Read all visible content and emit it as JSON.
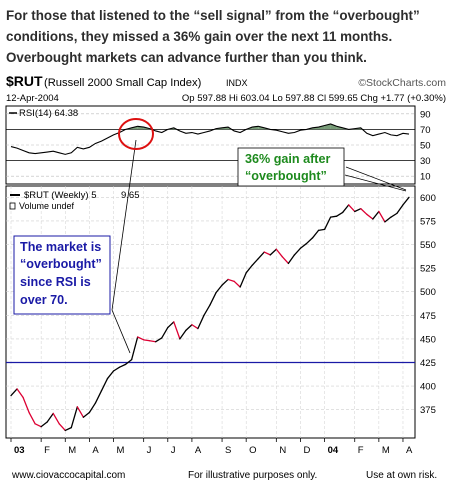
{
  "headline": [
    "For those that listened to the “sell signal” from the “overbought”",
    "conditions, they missed a 36% gain over the next 11 months.",
    "Overbought markets can advance further than you think."
  ],
  "header": {
    "symbol": "$RUT",
    "index_name": "(Russell 2000 Small Cap Index)",
    "exchange": "INDX",
    "source": "©StockCharts.com",
    "date": "12-Apr-2004",
    "quote": "Op 597.88  Hi 603.04  Lo 597.88  Cl 599.65  Chg +1.77 (+0.30%)"
  },
  "rsi_legend": "RSI(14) 64.38",
  "price_legend": "$RUT (Weekly) 5",
  "price_legend_value": "9.65",
  "volume_legend": "Volume undef",
  "annotations": {
    "gain_label": [
      "36% gain after",
      "“overbought”"
    ],
    "overbought_label": [
      "The market is",
      "“overbought”",
      "since RSI is",
      "over 70."
    ]
  },
  "colors": {
    "headline_text": "#2d2d2d",
    "price_up": "#000000",
    "price_down": "#dd0033",
    "support_line": "#1a1aa6",
    "gain_text": "#1d8a1d",
    "overbought_text": "#1a1aa6",
    "rsi_fill": "#5f8a5f",
    "circle": "#dd1111"
  },
  "chart_data": [
    {
      "type": "line",
      "name": "RSI",
      "title": "RSI(14) 64.38",
      "ylim": [
        0,
        100
      ],
      "y_ticks": [
        10,
        30,
        50,
        70,
        90
      ],
      "reference_lines": [
        70,
        30
      ],
      "x": [
        "2003-01-03",
        "2003-01-10",
        "2003-01-17",
        "2003-01-24",
        "2003-01-31",
        "2003-02-07",
        "2003-02-14",
        "2003-02-21",
        "2003-02-28",
        "2003-03-07",
        "2003-03-14",
        "2003-03-21",
        "2003-03-28",
        "2003-04-04",
        "2003-04-11",
        "2003-04-18",
        "2003-04-25",
        "2003-05-02",
        "2003-05-09",
        "2003-05-16",
        "2003-05-23",
        "2003-05-30",
        "2003-06-06",
        "2003-06-13",
        "2003-06-20",
        "2003-06-27",
        "2003-07-04",
        "2003-07-11",
        "2003-07-18",
        "2003-07-25",
        "2003-08-01",
        "2003-08-08",
        "2003-08-15",
        "2003-08-22",
        "2003-08-29",
        "2003-09-05",
        "2003-09-12",
        "2003-09-19",
        "2003-09-26",
        "2003-10-03",
        "2003-10-10",
        "2003-10-17",
        "2003-10-24",
        "2003-10-31",
        "2003-11-07",
        "2003-11-14",
        "2003-11-21",
        "2003-11-28",
        "2003-12-05",
        "2003-12-12",
        "2003-12-19",
        "2003-12-26",
        "2004-01-02",
        "2004-01-09",
        "2004-01-16",
        "2004-01-23",
        "2004-01-30",
        "2004-02-06",
        "2004-02-13",
        "2004-02-20",
        "2004-02-27",
        "2004-03-05",
        "2004-03-12",
        "2004-03-19",
        "2004-03-26",
        "2004-04-02",
        "2004-04-09"
      ],
      "values": [
        48,
        46,
        43,
        40,
        39,
        40,
        41,
        42,
        40,
        38,
        40,
        47,
        45,
        47,
        52,
        55,
        59,
        63,
        66,
        70,
        72,
        74,
        73,
        71,
        68,
        66,
        70,
        72,
        68,
        65,
        66,
        64,
        66,
        68,
        71,
        72,
        73,
        68,
        66,
        70,
        73,
        74,
        72,
        70,
        69,
        67,
        65,
        66,
        69,
        70,
        72,
        73,
        75,
        77,
        74,
        72,
        70,
        71,
        72,
        65,
        62,
        64,
        66,
        63,
        62,
        65,
        64
      ]
    },
    {
      "type": "line",
      "name": "$RUT (Weekly)",
      "title": "$RUT (Weekly)",
      "xlabel": "",
      "ylabel": "",
      "ylim": [
        345,
        612
      ],
      "y_ticks": [
        375,
        400,
        425,
        450,
        475,
        500,
        525,
        550,
        575,
        600
      ],
      "x_tick_labels": [
        "03",
        "F",
        "M",
        "A",
        "M",
        "J",
        "J",
        "A",
        "S",
        "O",
        "N",
        "D",
        "04",
        "F",
        "M",
        "A"
      ],
      "reference_lines": [
        425
      ],
      "x": [
        "2003-01-03",
        "2003-01-10",
        "2003-01-17",
        "2003-01-24",
        "2003-01-31",
        "2003-02-07",
        "2003-02-14",
        "2003-02-21",
        "2003-02-28",
        "2003-03-07",
        "2003-03-14",
        "2003-03-21",
        "2003-03-28",
        "2003-04-04",
        "2003-04-11",
        "2003-04-18",
        "2003-04-25",
        "2003-05-02",
        "2003-05-09",
        "2003-05-16",
        "2003-05-23",
        "2003-05-30",
        "2003-06-06",
        "2003-06-13",
        "2003-06-20",
        "2003-06-27",
        "2003-07-04",
        "2003-07-11",
        "2003-07-18",
        "2003-07-25",
        "2003-08-01",
        "2003-08-08",
        "2003-08-15",
        "2003-08-22",
        "2003-08-29",
        "2003-09-05",
        "2003-09-12",
        "2003-09-19",
        "2003-09-26",
        "2003-10-03",
        "2003-10-10",
        "2003-10-17",
        "2003-10-24",
        "2003-10-31",
        "2003-11-07",
        "2003-11-14",
        "2003-11-21",
        "2003-11-28",
        "2003-12-05",
        "2003-12-12",
        "2003-12-19",
        "2003-12-26",
        "2004-01-02",
        "2004-01-09",
        "2004-01-16",
        "2004-01-23",
        "2004-01-30",
        "2004-02-06",
        "2004-02-13",
        "2004-02-20",
        "2004-02-27",
        "2004-03-05",
        "2004-03-12",
        "2004-03-19",
        "2004-03-26",
        "2004-04-02",
        "2004-04-09"
      ],
      "values": [
        390,
        397,
        388,
        372,
        360,
        357,
        362,
        371,
        360,
        353,
        356,
        378,
        367,
        372,
        382,
        395,
        408,
        416,
        420,
        423,
        428,
        452,
        449,
        448,
        447,
        451,
        462,
        468,
        450,
        459,
        465,
        461,
        475,
        486,
        499,
        507,
        513,
        511,
        505,
        520,
        528,
        535,
        542,
        539,
        545,
        537,
        530,
        539,
        546,
        551,
        557,
        565,
        566,
        579,
        580,
        584,
        592,
        585,
        588,
        582,
        577,
        585,
        574,
        579,
        583,
        592,
        600
      ]
    }
  ],
  "footer": {
    "left": "www.ciovaccocapital.com",
    "middle": "For illustrative purposes only.",
    "right": "Use at own risk."
  }
}
